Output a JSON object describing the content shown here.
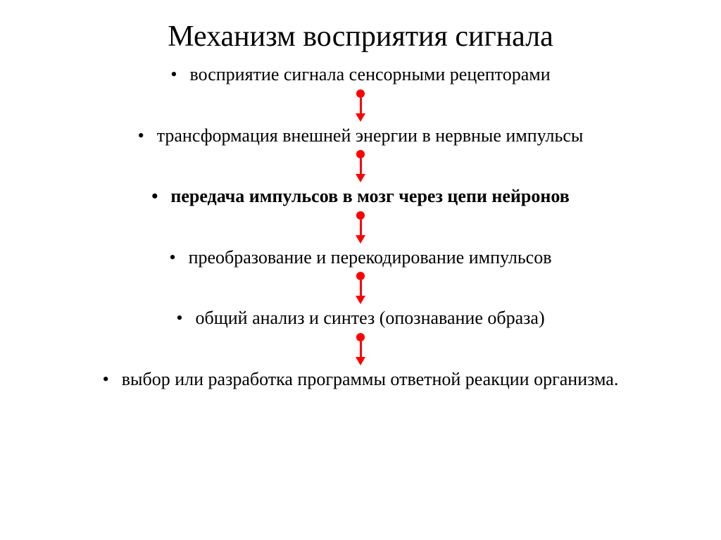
{
  "title": "Механизм восприятия сигнала",
  "bullet_char": "•",
  "arrow_color": "#ff0000",
  "text_color": "#000000",
  "background_color": "#ffffff",
  "title_fontsize": 42,
  "step_fontsize": 26,
  "steps": [
    {
      "text": "восприятие сигнала    сенсорными рецепторами",
      "bold": false
    },
    {
      "text": "трансформация внешней энергии  в нервные импульсы",
      "bold": false
    },
    {
      "text": "передача импульсов в мозг через цепи нейронов",
      "bold": true
    },
    {
      "text": "преобразование и перекодирование импульсов",
      "bold": false
    },
    {
      "text": "общий анализ и синтез (опознавание образа)",
      "bold": false
    },
    {
      "text": "выбор или разработка программы ответной реакции организма.",
      "bold": false
    }
  ]
}
